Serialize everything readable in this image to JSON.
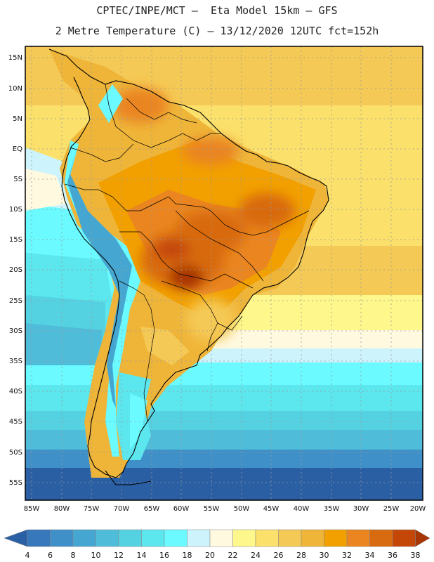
{
  "header": {
    "line1": "CPTEC/INPE/MCT –  Eta Model 15km – GFS",
    "line2": "2 Metre Temperature (C) – 13/12/2020 12UTC fct=152h"
  },
  "map": {
    "lat_labels": [
      "15N",
      "10N",
      "5N",
      "EQ",
      "5S",
      "10S",
      "15S",
      "20S",
      "25S",
      "30S",
      "35S",
      "40S",
      "45S",
      "50S",
      "55S"
    ],
    "lon_labels": [
      "85W",
      "80W",
      "75W",
      "70W",
      "65W",
      "60W",
      "55W",
      "50W",
      "45W",
      "40W",
      "35W",
      "30W",
      "25W",
      "20W"
    ]
  },
  "legend": {
    "values": [
      "4",
      "6",
      "8",
      "10",
      "12",
      "14",
      "16",
      "18",
      "20",
      "22",
      "24",
      "26",
      "28",
      "30",
      "32",
      "34",
      "36",
      "38"
    ],
    "colors": [
      "#2a5fa4",
      "#3678bb",
      "#3f8fc8",
      "#45a7d1",
      "#4fbdd9",
      "#55d2e2",
      "#5ce6ee",
      "#6afaff",
      "#cdf4fc",
      "#fff9e0",
      "#fef88c",
      "#fbe06b",
      "#f5c955",
      "#efb539",
      "#f2a000",
      "#ea8520",
      "#d86a10",
      "#c44708",
      "#a83604"
    ]
  }
}
